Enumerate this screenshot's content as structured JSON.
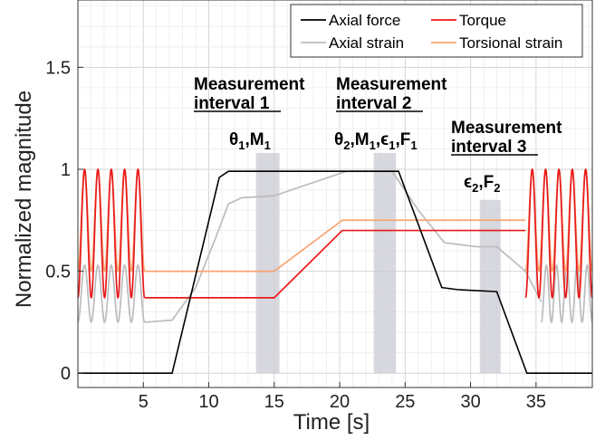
{
  "chart_data": {
    "type": "line",
    "xlabel": "Time [s]",
    "ylabel": "Normalized magnitude",
    "xlim": [
      0,
      39.3
    ],
    "ylim": [
      -0.07,
      1.83
    ],
    "xticks": [
      "5",
      "10",
      "15",
      "20",
      "25",
      "30",
      "35"
    ],
    "xtick_values": [
      5,
      10,
      15,
      20,
      25,
      30,
      35
    ],
    "yticks": [
      "0",
      "0.5",
      "1",
      "1.5"
    ],
    "ytick_values": [
      0,
      0.5,
      1,
      1.5
    ],
    "grid": true,
    "legend_position": "top-right",
    "series": [
      {
        "name": "Axial force",
        "color": "#000000",
        "points": [
          [
            0,
            0.0
          ],
          [
            7.2,
            0.0
          ],
          [
            10.8,
            0.96
          ],
          [
            11.5,
            0.99
          ],
          [
            24.5,
            0.99
          ],
          [
            27.8,
            0.42
          ],
          [
            29.0,
            0.41
          ],
          [
            32.0,
            0.4
          ],
          [
            34.3,
            0.0
          ],
          [
            39.3,
            0.0
          ]
        ]
      },
      {
        "name": "Torque",
        "color": "#e8191a",
        "oscillation": {
          "ranges": [
            [
              0,
              5.1
            ],
            [
              34.2,
              39.3
            ]
          ],
          "periods": 5,
          "min": 0.37,
          "max": 1.0
        },
        "points": [
          [
            5.1,
            0.37
          ],
          [
            15.0,
            0.37
          ],
          [
            20.2,
            0.7
          ],
          [
            34.2,
            0.7
          ]
        ]
      },
      {
        "name": "Axial strain",
        "color": "#bcbcbc",
        "oscillation": {
          "ranges": [
            [
              0,
              5.1
            ],
            [
              35.4,
              39.3
            ]
          ],
          "periods": 5,
          "min": 0.25,
          "max": 0.53
        },
        "points": [
          [
            5.1,
            0.25
          ],
          [
            7.2,
            0.26
          ],
          [
            9.0,
            0.42
          ],
          [
            10.5,
            0.66
          ],
          [
            11.5,
            0.83
          ],
          [
            12.5,
            0.86
          ],
          [
            15.0,
            0.87
          ],
          [
            20.5,
            0.99
          ],
          [
            24.0,
            0.99
          ],
          [
            26.0,
            0.8
          ],
          [
            28.0,
            0.64
          ],
          [
            30.5,
            0.62
          ],
          [
            32.0,
            0.62
          ],
          [
            34.2,
            0.5
          ],
          [
            35.4,
            0.35
          ]
        ]
      },
      {
        "name": "Torsional strain",
        "color": "#f7a572",
        "oscillation": {
          "ranges": [
            [
              0,
              5.1
            ],
            [
              34.2,
              39.3
            ]
          ],
          "periods": 5,
          "min": 0.5,
          "max": 1.0
        },
        "points": [
          [
            5.1,
            0.5
          ],
          [
            15.0,
            0.5
          ],
          [
            20.2,
            0.75
          ],
          [
            34.2,
            0.75
          ]
        ]
      }
    ],
    "shaded_intervals": [
      {
        "x0": 13.6,
        "x1": 15.4,
        "y0": 0,
        "y1": 1.08
      },
      {
        "x0": 22.6,
        "x1": 24.3,
        "y0": 0,
        "y1": 1.08
      },
      {
        "x0": 30.7,
        "x1": 32.3,
        "y0": 0,
        "y1": 0.85
      }
    ],
    "annotations": [
      {
        "line1": "Measurement",
        "line2": "interval 1"
      },
      {
        "line1": "Measurement",
        "line2": "interval 2"
      },
      {
        "line1": "Measurement",
        "line2": "interval 3"
      }
    ]
  }
}
